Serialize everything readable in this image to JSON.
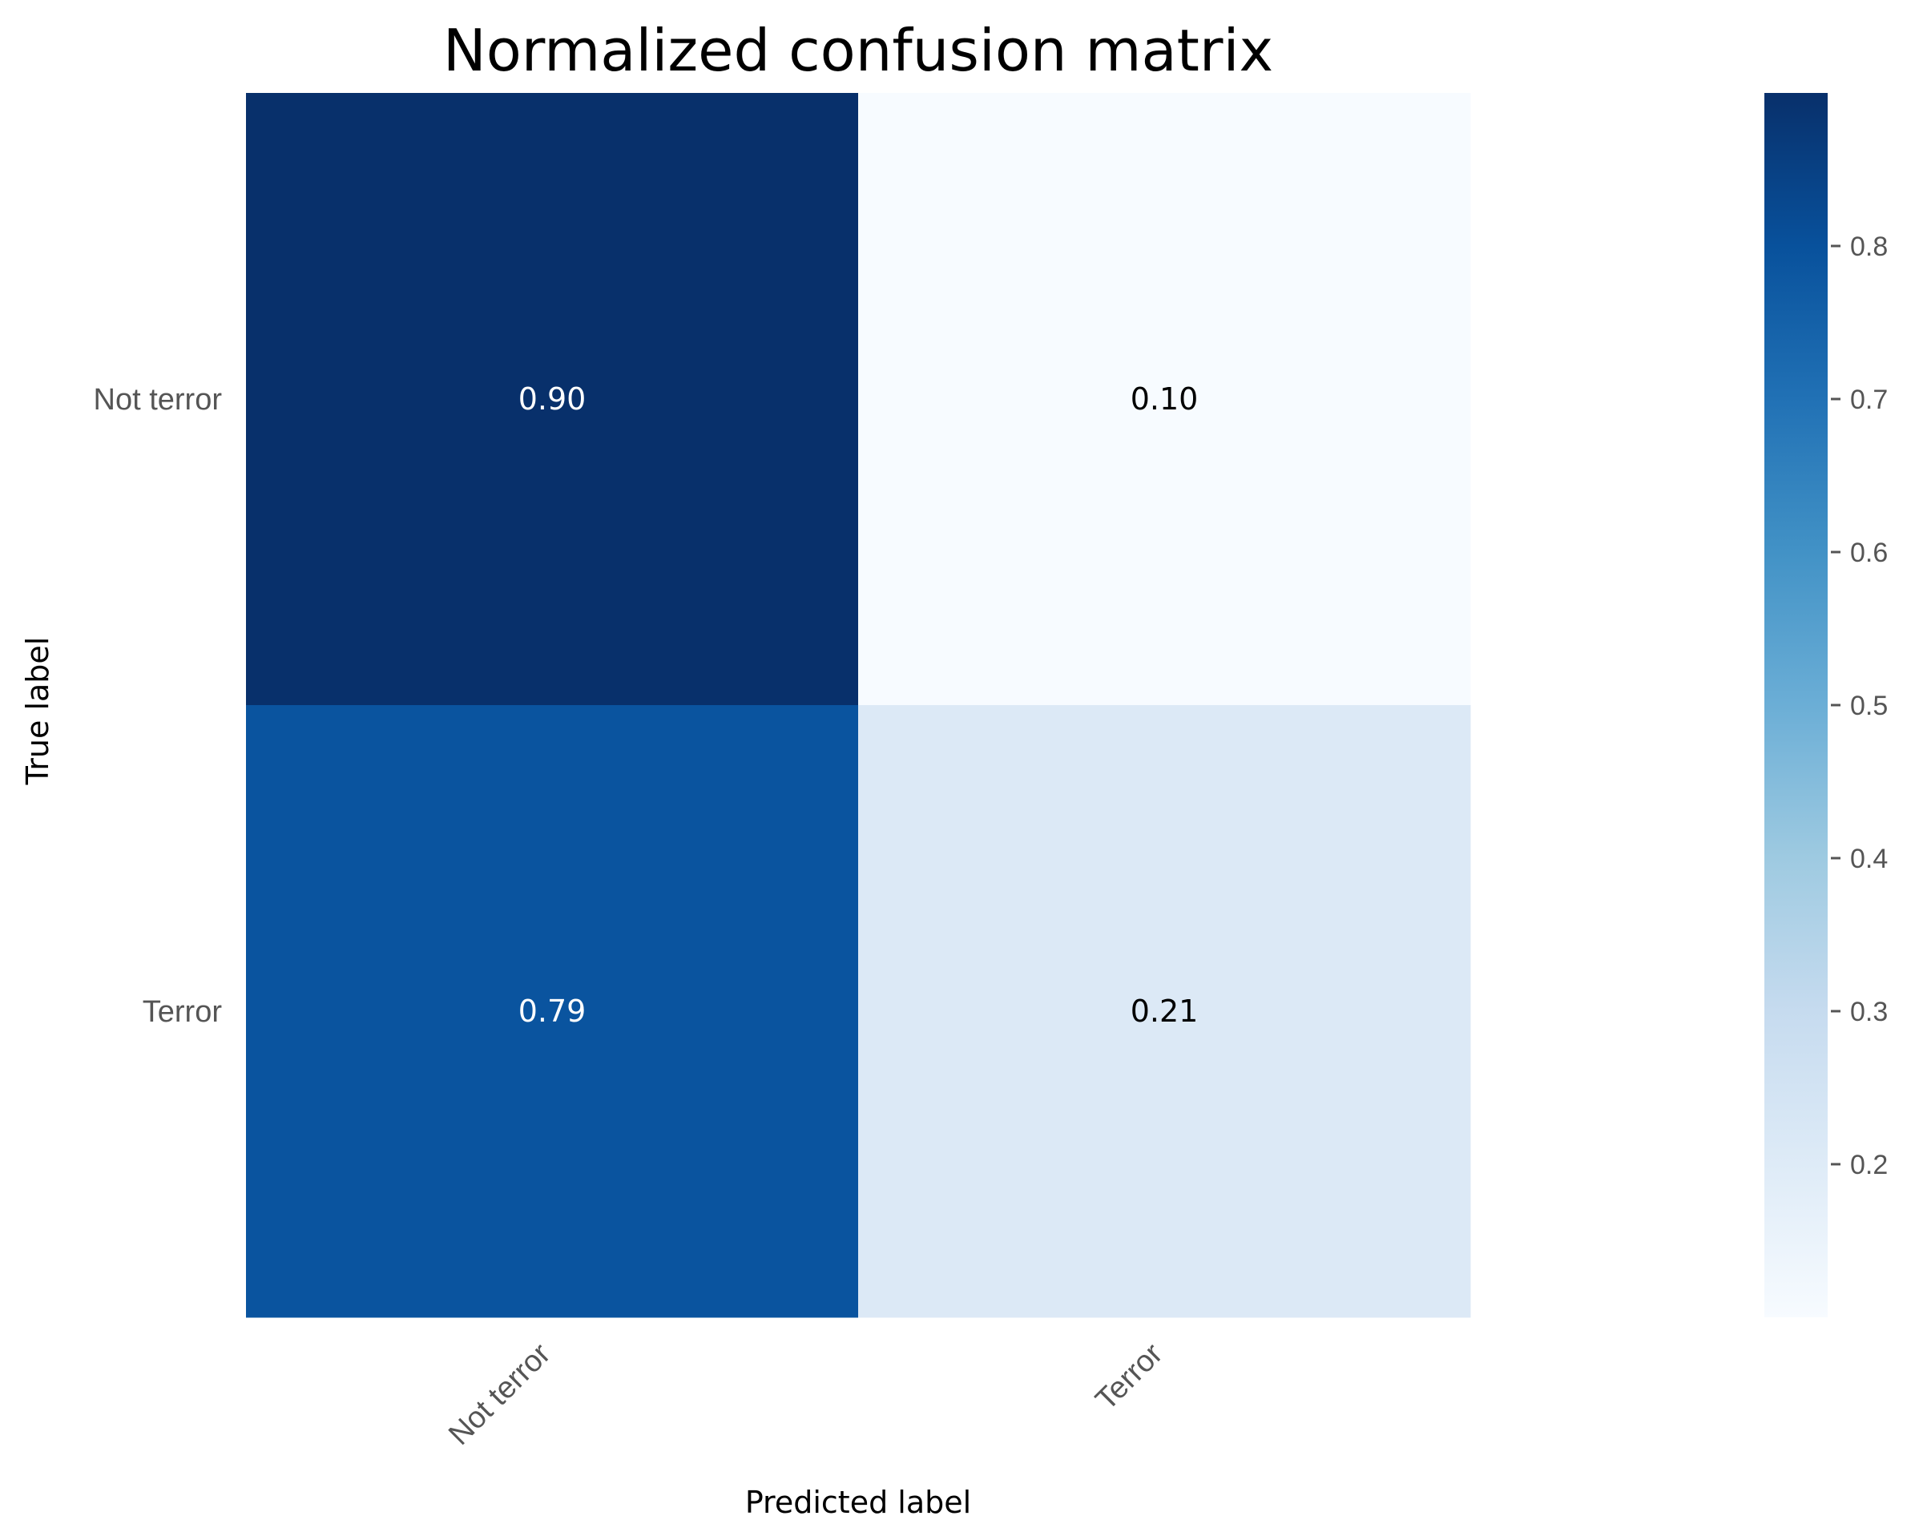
{
  "chart_data": {
    "type": "heatmap",
    "title": "Normalized confusion matrix",
    "xlabel": "Predicted label",
    "ylabel": "True label",
    "x_categories": [
      "Not terror",
      "Terror"
    ],
    "y_categories": [
      "Not terror",
      "Terror"
    ],
    "values": [
      [
        0.9,
        0.1
      ],
      [
        0.79,
        0.21
      ]
    ],
    "cell_labels": [
      [
        "0.90",
        "0.10"
      ],
      [
        "0.79",
        "0.21"
      ]
    ],
    "colormap": "Blues",
    "colorbar": {
      "range": [
        0.1,
        0.9
      ],
      "ticks": [
        0.2,
        0.3,
        0.4,
        0.5,
        0.6,
        0.7,
        0.8
      ],
      "tick_labels": [
        "0.2",
        "0.3",
        "0.4",
        "0.5",
        "0.6",
        "0.7",
        "0.8"
      ]
    },
    "grid": false,
    "text_colors": {
      "dark_cell": "#ffffff",
      "light_cell": "#000000"
    },
    "tick_color": "#555555"
  }
}
